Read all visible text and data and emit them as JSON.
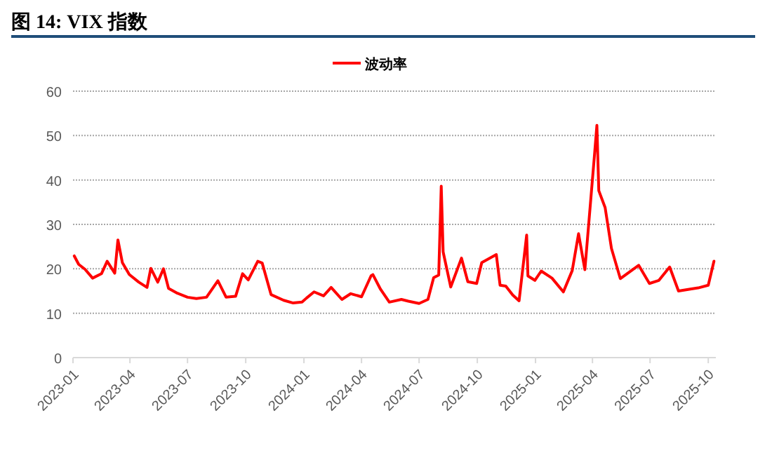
{
  "chart_data": {
    "type": "line",
    "title": "图 14: VIX 指数",
    "legend": "top",
    "grid": "y",
    "marker": "none",
    "line_style": "solid",
    "xlim": [
      "2023-01-01",
      "2025-10-13"
    ],
    "xticks": [
      {
        "value": "2023-01-01",
        "label": "2023-01"
      },
      {
        "value": "2023-04-01",
        "label": "2023-04"
      },
      {
        "value": "2023-07-01",
        "label": "2023-07"
      },
      {
        "value": "2023-10-01",
        "label": "2023-10"
      },
      {
        "value": "2024-01-01",
        "label": "2024-01"
      },
      {
        "value": "2024-04-01",
        "label": "2024-04"
      },
      {
        "value": "2024-07-01",
        "label": "2024-07"
      },
      {
        "value": "2024-10-01",
        "label": "2024-10"
      },
      {
        "value": "2025-01-01",
        "label": "2025-01"
      },
      {
        "value": "2025-04-01",
        "label": "2025-04"
      },
      {
        "value": "2025-07-01",
        "label": "2025-07"
      },
      {
        "value": "2025-10-01",
        "label": "2025-10"
      }
    ],
    "ylim": [
      0,
      60
    ],
    "yticks": [
      0,
      10,
      20,
      30,
      40,
      50,
      60
    ],
    "x": [
      "2023-01-03",
      "2023-01-10",
      "2023-01-20",
      "2023-02-01",
      "2023-02-15",
      "2023-02-24",
      "2023-03-01",
      "2023-03-08",
      "2023-03-13",
      "2023-03-20",
      "2023-03-31",
      "2023-04-15",
      "2023-04-28",
      "2023-05-04",
      "2023-05-15",
      "2023-05-24",
      "2023-06-01",
      "2023-06-15",
      "2023-07-01",
      "2023-07-15",
      "2023-07-31",
      "2023-08-18",
      "2023-08-31",
      "2023-09-15",
      "2023-09-26",
      "2023-10-05",
      "2023-10-20",
      "2023-10-27",
      "2023-11-10",
      "2023-11-30",
      "2023-12-15",
      "2023-12-29",
      "2024-01-05",
      "2024-01-17",
      "2024-02-01",
      "2024-02-13",
      "2024-03-01",
      "2024-03-15",
      "2024-04-01",
      "2024-04-16",
      "2024-04-19",
      "2024-05-01",
      "2024-05-15",
      "2024-06-03",
      "2024-06-14",
      "2024-07-01",
      "2024-07-15",
      "2024-07-24",
      "2024-08-01",
      "2024-08-05",
      "2024-08-08",
      "2024-08-20",
      "2024-09-06",
      "2024-09-16",
      "2024-09-30",
      "2024-10-08",
      "2024-10-31",
      "2024-11-06",
      "2024-11-15",
      "2024-11-26",
      "2024-12-06",
      "2024-12-18",
      "2024-12-20",
      "2024-12-31",
      "2025-01-10",
      "2025-01-27",
      "2025-02-14",
      "2025-02-28",
      "2025-03-10",
      "2025-03-20",
      "2025-04-04",
      "2025-04-08",
      "2025-04-11",
      "2025-04-21",
      "2025-05-01",
      "2025-05-15",
      "2025-06-13",
      "2025-06-30",
      "2025-07-15",
      "2025-08-01",
      "2025-08-15",
      "2025-09-01",
      "2025-09-15",
      "2025-10-01",
      "2025-10-10"
    ],
    "series": [
      {
        "name": "波动率",
        "color": "#ff0000",
        "values": [
          22.9,
          21,
          19.9,
          17.9,
          18.9,
          21.7,
          20.6,
          19,
          26.5,
          21.4,
          18.7,
          17,
          15.8,
          20.1,
          17,
          20,
          15.6,
          14.5,
          13.6,
          13.3,
          13.6,
          17.3,
          13.6,
          13.8,
          18.9,
          17.5,
          21.7,
          21.3,
          14.2,
          12.9,
          12.3,
          12.5,
          13.4,
          14.8,
          13.9,
          15.8,
          13.1,
          14.4,
          13.7,
          18.4,
          18.7,
          15.4,
          12.5,
          13.1,
          12.7,
          12.2,
          13.1,
          18,
          18.6,
          38.6,
          23.8,
          15.9,
          22.4,
          17.1,
          16.7,
          21.4,
          23.2,
          16.3,
          16.1,
          14.1,
          12.8,
          27.6,
          18.4,
          17.4,
          19.5,
          17.9,
          14.8,
          19.6,
          27.9,
          19.8,
          45.3,
          52.3,
          37.6,
          33.8,
          24.6,
          17.8,
          20.8,
          16.7,
          17.4,
          20.4,
          15,
          15.4,
          15.7,
          16.3,
          21.7
        ]
      }
    ]
  }
}
